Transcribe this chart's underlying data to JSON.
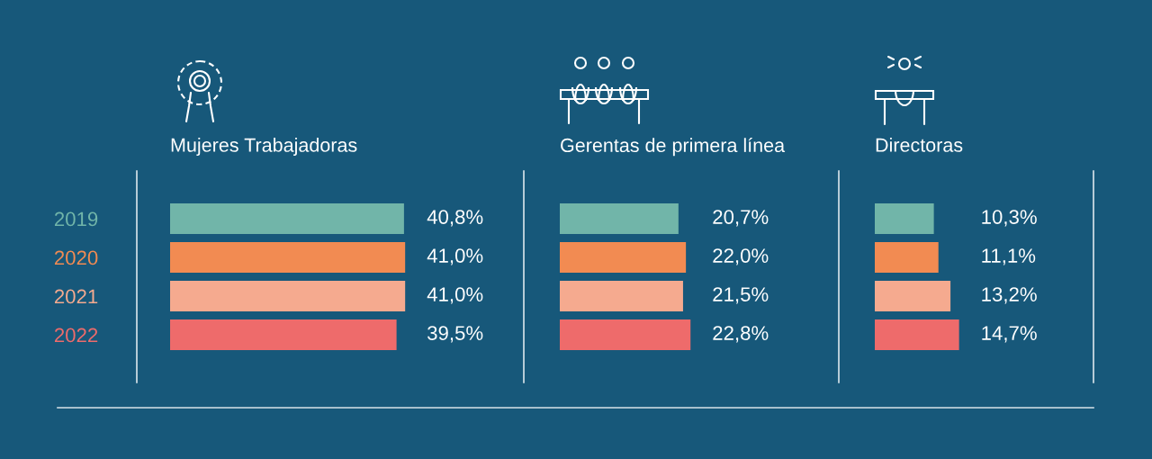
{
  "chart_data": [
    {
      "type": "bar",
      "orientation": "horizontal",
      "title": "Mujeres Trabajadoras",
      "categories": [
        "2019",
        "2020",
        "2021",
        "2022"
      ],
      "values": [
        40.8,
        41.0,
        41.0,
        39.5
      ],
      "colors": [
        "#71b5a9",
        "#f28b52",
        "#f5aa8f",
        "#ee6b6b"
      ],
      "value_labels": [
        "40,8%",
        "41,0%",
        "41,0%",
        "39,5%"
      ],
      "tick_labels": "y"
    },
    {
      "type": "bar",
      "orientation": "horizontal",
      "title": "Gerentas de primera línea",
      "categories": [
        "2019",
        "2020",
        "2021",
        "2022"
      ],
      "values": [
        20.7,
        22.0,
        21.5,
        22.8
      ],
      "colors": [
        "#71b5a9",
        "#f28b52",
        "#f5aa8f",
        "#ee6b6b"
      ],
      "value_labels": [
        "20,7%",
        "22,0%",
        "21,5%",
        "22,8%"
      ],
      "tick_labels": false
    },
    {
      "type": "bar",
      "orientation": "horizontal",
      "title": "Directoras",
      "categories": [
        "2019",
        "2020",
        "2021",
        "2022"
      ],
      "values": [
        10.3,
        11.1,
        13.2,
        14.7
      ],
      "colors": [
        "#71b5a9",
        "#f28b52",
        "#f5aa8f",
        "#ee6b6b"
      ],
      "value_labels": [
        "10,3%",
        "11,1%",
        "13,2%",
        "14,7%"
      ],
      "tick_labels": false
    }
  ]
}
